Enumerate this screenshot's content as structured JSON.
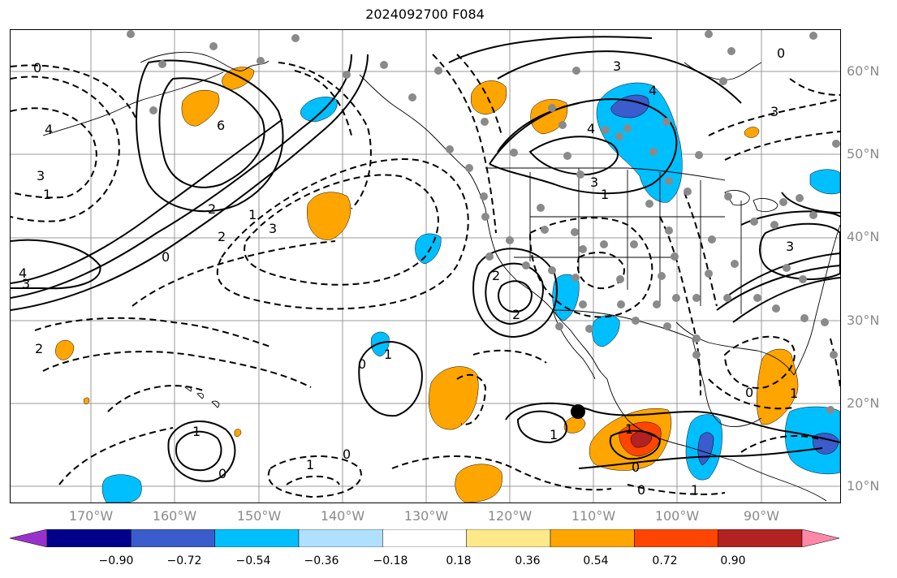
{
  "title": "2024092700 F084",
  "lat_labels": [
    "60°N",
    "50°N",
    "40°N",
    "30°N",
    "20°N",
    "10°N"
  ],
  "lon_labels": [
    "170°W",
    "160°W",
    "150°W",
    "140°W",
    "130°W",
    "120°W",
    "110°W",
    "100°W",
    "90°W"
  ],
  "colorbar": {
    "colors": [
      "#9932cc",
      "#00008b",
      "#3a5ccc",
      "#00bfff",
      "#b0e0ff",
      "#ffffff",
      "#fde98a",
      "#ffa500",
      "#ff4500",
      "#b22222",
      "#ff88aa"
    ],
    "ticks": [
      "−0.90",
      "−0.72",
      "−0.54",
      "−0.36",
      "−0.18",
      "0.18",
      "0.36",
      "0.54",
      "0.72",
      "0.90"
    ],
    "extend": "both"
  },
  "contour_labels": [
    {
      "text": "0"
    },
    {
      "text": "4"
    },
    {
      "text": "3"
    },
    {
      "text": "1"
    },
    {
      "text": "6"
    },
    {
      "text": "2"
    },
    {
      "text": "2"
    },
    {
      "text": "1"
    },
    {
      "text": "3"
    },
    {
      "text": "0"
    },
    {
      "text": "4"
    },
    {
      "text": "3"
    },
    {
      "text": "3"
    },
    {
      "text": "4"
    },
    {
      "text": "3"
    },
    {
      "text": "1"
    },
    {
      "text": "2"
    },
    {
      "text": "2"
    },
    {
      "text": "1"
    },
    {
      "text": "0"
    },
    {
      "text": "1"
    },
    {
      "text": "1"
    },
    {
      "text": "0"
    },
    {
      "text": "0"
    },
    {
      "text": "1"
    },
    {
      "text": "0"
    },
    {
      "text": "1"
    },
    {
      "text": "0"
    },
    {
      "text": "3"
    },
    {
      "text": "3"
    },
    {
      "text": "0"
    },
    {
      "text": "1"
    },
    {
      "text": "0"
    },
    {
      "text": "2"
    },
    {
      "text": "1"
    },
    {
      "text": "4"
    }
  ],
  "marker": {
    "label": "storm-center"
  }
}
